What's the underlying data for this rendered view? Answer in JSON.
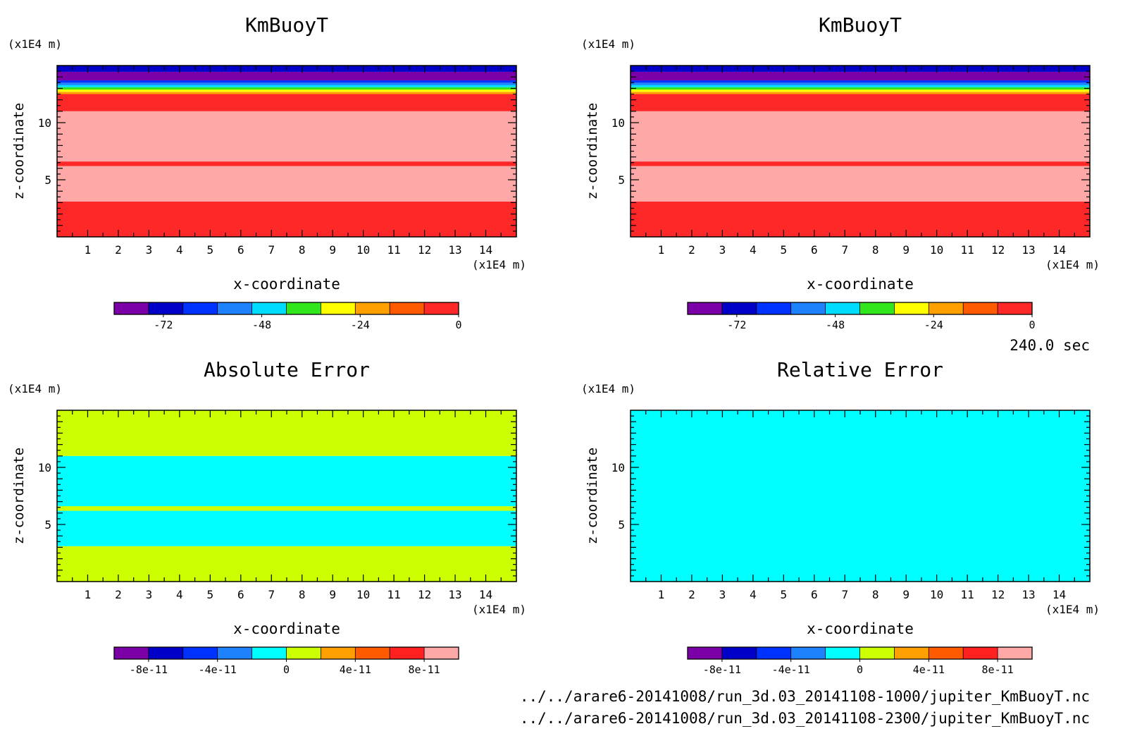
{
  "time_label": "240.0 sec",
  "files": [
    "../../arare6-20141008/run_3d.03_20141108-1000/jupiter_KmBuoyT.nc",
    "../../arare6-20141008/run_3d.03_20141108-2300/jupiter_KmBuoyT.nc"
  ],
  "chart_data": [
    {
      "type": "heatmap",
      "title": "KmBuoyT",
      "xlabel": "x-coordinate",
      "ylabel": "z-coordinate",
      "x_unit": "(x1E4 m)",
      "y_unit": "(x1E4 m)",
      "xlim": [
        0,
        15
      ],
      "ylim": [
        0,
        15
      ],
      "x_ticks": [
        1,
        2,
        3,
        4,
        5,
        6,
        7,
        8,
        9,
        10,
        11,
        12,
        13,
        14
      ],
      "y_ticks": [
        5,
        10
      ],
      "colorbar": {
        "levels": [
          -84,
          -78,
          -72,
          -66,
          -60,
          -54,
          -48,
          -42,
          -36,
          -30,
          -24,
          -18,
          -12,
          -6,
          0
        ],
        "colors": [
          "#7b00a8",
          "#0000c8",
          "#0032ff",
          "#1e82ff",
          "#00dcff",
          "#32e61e",
          "#ffff00",
          "#ffa000",
          "#ff5a00",
          "#ff2828"
        ],
        "tick_values": [
          -72,
          -48,
          -24,
          0
        ],
        "tick_labels": [
          "-72",
          "-48",
          "-24",
          "0"
        ]
      },
      "fill_regions": [
        {
          "z_from": 0,
          "z_to": 3.1,
          "color": "#ff2828"
        },
        {
          "z_from": 3.1,
          "z_to": 6.2,
          "color": "#ffa8a8"
        },
        {
          "z_from": 6.2,
          "z_to": 6.6,
          "color": "#ff2828"
        },
        {
          "z_from": 6.6,
          "z_to": 11.0,
          "color": "#ffa8a8"
        },
        {
          "z_from": 11.0,
          "z_to": 12.5,
          "color": "#ff2828"
        },
        {
          "z_from": 12.5,
          "z_to": 12.7,
          "color": "#ffa000"
        },
        {
          "z_from": 12.7,
          "z_to": 12.9,
          "color": "#ffff00"
        },
        {
          "z_from": 12.9,
          "z_to": 13.1,
          "color": "#32e61e"
        },
        {
          "z_from": 13.1,
          "z_to": 13.3,
          "color": "#00dcff"
        },
        {
          "z_from": 13.3,
          "z_to": 13.5,
          "color": "#1e82ff"
        },
        {
          "z_from": 13.5,
          "z_to": 13.7,
          "color": "#0032ff"
        },
        {
          "z_from": 13.7,
          "z_to": 14.45,
          "color": "#7b00a8"
        },
        {
          "z_from": 14.45,
          "z_to": 15,
          "color": "#0000c8"
        }
      ]
    },
    {
      "type": "heatmap",
      "title": "KmBuoyT",
      "xlabel": "x-coordinate",
      "ylabel": "z-coordinate",
      "x_unit": "(x1E4 m)",
      "y_unit": "(x1E4 m)",
      "xlim": [
        0,
        15
      ],
      "ylim": [
        0,
        15
      ],
      "x_ticks": [
        1,
        2,
        3,
        4,
        5,
        6,
        7,
        8,
        9,
        10,
        11,
        12,
        13,
        14
      ],
      "y_ticks": [
        5,
        10
      ],
      "colorbar": {
        "levels": [
          -84,
          -78,
          -72,
          -66,
          -60,
          -54,
          -48,
          -42,
          -36,
          -30,
          -24,
          -18,
          -12,
          -6,
          0
        ],
        "colors": [
          "#7b00a8",
          "#0000c8",
          "#0032ff",
          "#1e82ff",
          "#00dcff",
          "#32e61e",
          "#ffff00",
          "#ffa000",
          "#ff5a00",
          "#ff2828"
        ],
        "tick_values": [
          -72,
          -48,
          -24,
          0
        ],
        "tick_labels": [
          "-72",
          "-48",
          "-24",
          "0"
        ]
      },
      "fill_regions": [
        {
          "z_from": 0,
          "z_to": 3.1,
          "color": "#ff2828"
        },
        {
          "z_from": 3.1,
          "z_to": 6.2,
          "color": "#ffa8a8"
        },
        {
          "z_from": 6.2,
          "z_to": 6.6,
          "color": "#ff2828"
        },
        {
          "z_from": 6.6,
          "z_to": 11.0,
          "color": "#ffa8a8"
        },
        {
          "z_from": 11.0,
          "z_to": 12.5,
          "color": "#ff2828"
        },
        {
          "z_from": 12.5,
          "z_to": 12.7,
          "color": "#ffa000"
        },
        {
          "z_from": 12.7,
          "z_to": 12.9,
          "color": "#ffff00"
        },
        {
          "z_from": 12.9,
          "z_to": 13.1,
          "color": "#32e61e"
        },
        {
          "z_from": 13.1,
          "z_to": 13.3,
          "color": "#00dcff"
        },
        {
          "z_from": 13.3,
          "z_to": 13.5,
          "color": "#1e82ff"
        },
        {
          "z_from": 13.5,
          "z_to": 13.7,
          "color": "#0032ff"
        },
        {
          "z_from": 13.7,
          "z_to": 14.45,
          "color": "#7b00a8"
        },
        {
          "z_from": 14.45,
          "z_to": 15,
          "color": "#0000c8"
        }
      ]
    },
    {
      "type": "heatmap",
      "title": "Absolute Error",
      "xlabel": "x-coordinate",
      "ylabel": "z-coordinate",
      "x_unit": "(x1E4 m)",
      "y_unit": "(x1E4 m)",
      "xlim": [
        0,
        15
      ],
      "ylim": [
        0,
        15
      ],
      "x_ticks": [
        1,
        2,
        3,
        4,
        5,
        6,
        7,
        8,
        9,
        10,
        11,
        12,
        13,
        14
      ],
      "y_ticks": [
        5,
        10
      ],
      "colorbar": {
        "levels": [
          -1e-10,
          -8e-11,
          -6e-11,
          -4e-11,
          -2e-11,
          0,
          2e-11,
          4e-11,
          6e-11,
          8e-11,
          1e-10
        ],
        "colors": [
          "#7b00a8",
          "#0000c8",
          "#0032ff",
          "#1e82ff",
          "#00ffff",
          "#ccff00",
          "#ffa000",
          "#ff5a00",
          "#ff2020",
          "#ffa8a8"
        ],
        "tick_values": [
          -8e-11,
          -4e-11,
          0,
          4e-11,
          8e-11
        ],
        "tick_labels": [
          "-8e-11",
          "-4e-11",
          "0",
          "4e-11",
          "8e-11"
        ]
      },
      "fill_regions": [
        {
          "z_from": 0,
          "z_to": 3.1,
          "color": "#ccff00"
        },
        {
          "z_from": 3.1,
          "z_to": 6.2,
          "color": "#00ffff"
        },
        {
          "z_from": 6.2,
          "z_to": 6.6,
          "color": "#ccff00"
        },
        {
          "z_from": 6.6,
          "z_to": 11.0,
          "color": "#00ffff"
        },
        {
          "z_from": 11.0,
          "z_to": 15,
          "color": "#ccff00"
        }
      ]
    },
    {
      "type": "heatmap",
      "title": "Relative Error",
      "xlabel": "x-coordinate",
      "ylabel": "z-coordinate",
      "x_unit": "(x1E4 m)",
      "y_unit": "(x1E4 m)",
      "xlim": [
        0,
        15
      ],
      "ylim": [
        0,
        15
      ],
      "x_ticks": [
        1,
        2,
        3,
        4,
        5,
        6,
        7,
        8,
        9,
        10,
        11,
        12,
        13,
        14
      ],
      "y_ticks": [
        5,
        10
      ],
      "colorbar": {
        "levels": [
          -1e-10,
          -8e-11,
          -6e-11,
          -4e-11,
          -2e-11,
          0,
          2e-11,
          4e-11,
          6e-11,
          8e-11,
          1e-10
        ],
        "colors": [
          "#7b00a8",
          "#0000c8",
          "#0032ff",
          "#1e82ff",
          "#00ffff",
          "#ccff00",
          "#ffa000",
          "#ff5a00",
          "#ff2020",
          "#ffa8a8"
        ],
        "tick_values": [
          -8e-11,
          -4e-11,
          0,
          4e-11,
          8e-11
        ],
        "tick_labels": [
          "-8e-11",
          "-4e-11",
          "0",
          "4e-11",
          "8e-11"
        ]
      },
      "fill_regions": [
        {
          "z_from": 0,
          "z_to": 15,
          "color": "#00ffff"
        }
      ]
    }
  ]
}
